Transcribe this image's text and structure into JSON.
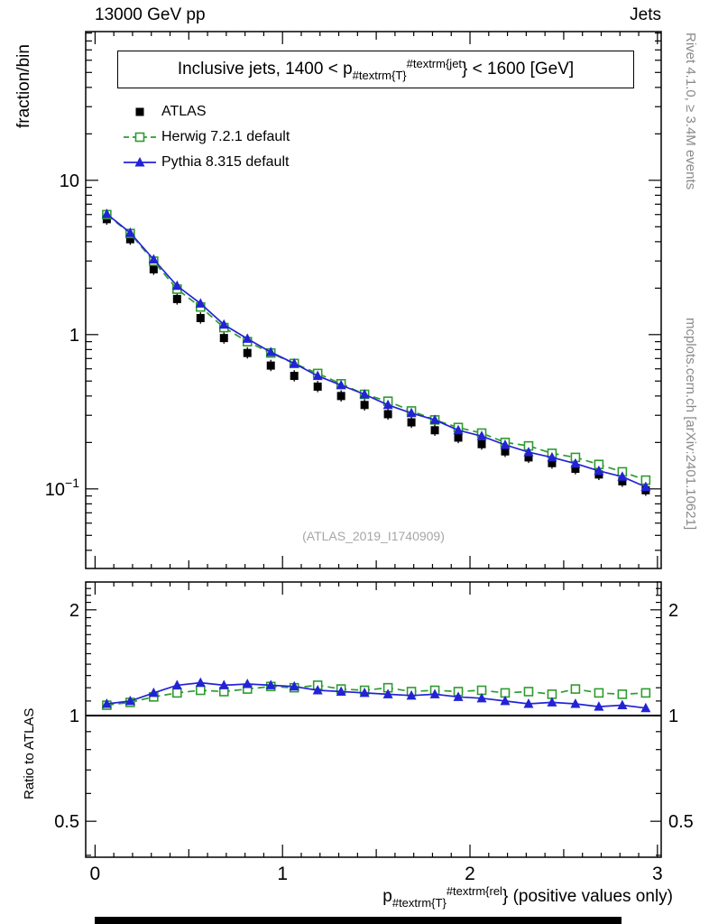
{
  "header": {
    "left": "13000 GeV pp",
    "right": "Jets"
  },
  "side_notes": {
    "top": "Rivet 4.1.0, ≥ 3.4M events",
    "bottom": "mcplots.cern.ch [arXiv:2401.10621]"
  },
  "watermark": "(ATLAS_2019_I1740909)",
  "title": {
    "prefix": "Inclusive jets, 1400 < p",
    "sub": "#textrm{T}",
    "sup": "#textrm{jet",
    "suffix": "} < 1600 [GeV]"
  },
  "xlabel": {
    "base": "p",
    "sub": "#textrm{T}",
    "sup": "#textrm{rel",
    "suffix": "} (positive values only)"
  },
  "ylabels": {
    "main": "fraction/bin",
    "ratio": "Ratio to ATLAS"
  },
  "legend": [
    {
      "key": "atlas",
      "label": "ATLAS",
      "color": "#000000",
      "marker": "square-filled",
      "line": "none"
    },
    {
      "key": "herwig",
      "label": "Herwig 7.2.1 default",
      "color": "#2e9b2e",
      "marker": "square-open",
      "line": "dashed"
    },
    {
      "key": "pythia",
      "label": "Pythia 8.315 default",
      "color": "#2323d6",
      "marker": "triangle-filled",
      "line": "solid"
    }
  ],
  "chart_data": {
    "type": "scatter-line",
    "title": "Inclusive jets, 1400 < pT^jet < 1600 [GeV]",
    "xlabel": "pT^rel (positive values only)",
    "xlim": [
      -0.05,
      3.02
    ],
    "xticks": [
      0,
      1,
      2,
      3
    ],
    "x": [
      0.0625,
      0.1875,
      0.3125,
      0.4375,
      0.5625,
      0.6875,
      0.8125,
      0.9375,
      1.0625,
      1.1875,
      1.3125,
      1.4375,
      1.5625,
      1.6875,
      1.8125,
      1.9375,
      2.0625,
      2.1875,
      2.3125,
      2.4375,
      2.5625,
      2.6875,
      2.8125,
      2.9375
    ],
    "main": {
      "ylabel": "fraction/bin",
      "yscale": "log",
      "ylim": [
        0.0305,
        92
      ],
      "yticks": [
        {
          "v": 10,
          "base": "10",
          "exp": ""
        },
        {
          "v": 1,
          "base": "1",
          "exp": ""
        },
        {
          "v": 0.1,
          "base": "10",
          "exp": "−1"
        }
      ],
      "series": [
        {
          "name": "ATLAS",
          "color": "#000000",
          "marker": "square-filled",
          "line": "none",
          "error_bars": true,
          "values": [
            5.6,
            4.15,
            2.65,
            1.7,
            1.28,
            0.95,
            0.76,
            0.63,
            0.54,
            0.46,
            0.4,
            0.35,
            0.305,
            0.27,
            0.24,
            0.215,
            0.195,
            0.175,
            0.16,
            0.147,
            0.135,
            0.124,
            0.112,
            0.098
          ]
        },
        {
          "name": "Herwig 7.2.1 default",
          "color": "#2e9b2e",
          "marker": "square-open",
          "line": "dashed",
          "error_bars": false,
          "values": [
            5.99,
            4.52,
            2.99,
            1.97,
            1.51,
            1.11,
            0.9,
            0.76,
            0.65,
            0.56,
            0.48,
            0.41,
            0.37,
            0.32,
            0.28,
            0.25,
            0.23,
            0.2,
            0.19,
            0.17,
            0.16,
            0.144,
            0.129,
            0.114
          ]
        },
        {
          "name": "Pythia 8.315 default",
          "color": "#2323d6",
          "marker": "triangle-filled",
          "line": "solid",
          "error_bars": false,
          "values": [
            6.05,
            4.57,
            3.07,
            2.07,
            1.59,
            1.16,
            0.94,
            0.77,
            0.65,
            0.54,
            0.47,
            0.41,
            0.35,
            0.31,
            0.28,
            0.24,
            0.22,
            0.193,
            0.173,
            0.16,
            0.146,
            0.131,
            0.12,
            0.103
          ]
        }
      ]
    },
    "ratio": {
      "ylabel": "Ratio to ATLAS",
      "yscale": "log",
      "ylim": [
        0.395,
        2.4
      ],
      "baseline": 1,
      "yticks": [
        {
          "v": 0.5,
          "label": "0.5"
        },
        {
          "v": 1,
          "label": "1"
        },
        {
          "v": 2,
          "label": "2"
        }
      ],
      "series": [
        {
          "name": "Herwig 7.2.1 default / ATLAS",
          "color": "#2e9b2e",
          "marker": "square-open",
          "line": "dashed",
          "values": [
            1.07,
            1.09,
            1.13,
            1.16,
            1.18,
            1.17,
            1.19,
            1.21,
            1.2,
            1.22,
            1.19,
            1.18,
            1.2,
            1.17,
            1.18,
            1.17,
            1.18,
            1.16,
            1.17,
            1.15,
            1.19,
            1.16,
            1.15,
            1.16
          ]
        },
        {
          "name": "Pythia 8.315 default / ATLAS",
          "color": "#2323d6",
          "marker": "triangle-filled",
          "line": "solid",
          "values": [
            1.08,
            1.1,
            1.16,
            1.22,
            1.24,
            1.22,
            1.23,
            1.22,
            1.21,
            1.18,
            1.17,
            1.16,
            1.15,
            1.14,
            1.15,
            1.13,
            1.12,
            1.1,
            1.08,
            1.09,
            1.08,
            1.06,
            1.07,
            1.05
          ]
        }
      ]
    }
  }
}
